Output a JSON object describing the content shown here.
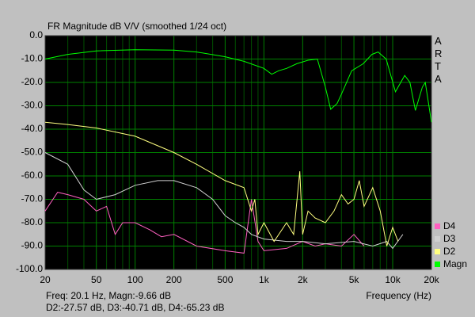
{
  "chart_data": {
    "type": "line",
    "title": "FR Magnitude dB V/V (smoothed 1/24 oct)",
    "side_label": "ARTA",
    "x_label": "Frequency (Hz)",
    "status": [
      "Freq: 20.1 Hz, Magn:-9.66 dB",
      "D2:-27.57 dB, D3:-40.71 dB, D4:-65.23 dB"
    ],
    "log_x": true,
    "grid": true,
    "legend": "lower right",
    "xlim": [
      20,
      20000
    ],
    "ylim": [
      -100,
      0
    ],
    "xticks": [
      20,
      50,
      100,
      200,
      500,
      {
        "value": 1000,
        "label": "1k"
      },
      {
        "value": 2000,
        "label": "2k"
      },
      {
        "value": 5000,
        "label": "5k"
      },
      {
        "value": 10000,
        "label": "10k"
      },
      {
        "value": 20000,
        "label": "20k"
      }
    ],
    "xminorticks": [
      30,
      40,
      60,
      70,
      80,
      90,
      300,
      400,
      600,
      700,
      800,
      900,
      3000,
      4000,
      6000,
      7000,
      8000,
      9000
    ],
    "yticks": [
      {
        "value": 0,
        "label": "0.0"
      },
      {
        "value": -10,
        "label": "-10.0"
      },
      {
        "value": -20,
        "label": "-20.0"
      },
      {
        "value": -30,
        "label": "-30.0"
      },
      {
        "value": -40,
        "label": "-40.0"
      },
      {
        "value": -50,
        "label": "-50.0"
      },
      {
        "value": -60,
        "label": "-60.0"
      },
      {
        "value": -70,
        "label": "-70.0"
      },
      {
        "value": -80,
        "label": "-80.0"
      },
      {
        "value": -90,
        "label": "-90.0"
      },
      {
        "value": -100,
        "label": "-100.0"
      }
    ],
    "series": [
      {
        "name": "Magn",
        "color": "#00ff00",
        "x": [
          20,
          30,
          50,
          100,
          200,
          300,
          500,
          700,
          1000,
          1150,
          1300,
          1500,
          1800,
          2200,
          2600,
          3000,
          3300,
          3700,
          4000,
          4800,
          5900,
          6900,
          7700,
          8900,
          10500,
          12400,
          13600,
          15000,
          17000,
          17900,
          20000
        ],
        "values": [
          -10,
          -8,
          -6.5,
          -6,
          -6.2,
          -7,
          -9,
          -11,
          -14,
          -16.5,
          -15,
          -14,
          -12,
          -10.5,
          -10,
          -22,
          -31.5,
          -29,
          -25,
          -15,
          -12,
          -8,
          -7,
          -10,
          -24,
          -17,
          -20,
          -32,
          -22,
          -20,
          -37
        ]
      },
      {
        "name": "D2",
        "color": "#ffff80",
        "x": [
          20,
          30,
          50,
          100,
          200,
          300,
          500,
          700,
          800,
          850,
          900,
          1000,
          1200,
          1500,
          1700,
          1900,
          2000,
          2200,
          2500,
          3000,
          3500,
          4000,
          4500,
          5000,
          5500,
          6000,
          7000,
          8000,
          9000,
          10000,
          11000
        ],
        "values": [
          -37,
          -38,
          -39.5,
          -43,
          -50,
          -55,
          -62,
          -65,
          -75,
          -70,
          -85,
          -80,
          -88,
          -80,
          -85,
          -58,
          -85,
          -75,
          -78,
          -80,
          -75,
          -68,
          -72,
          -70,
          -62,
          -73,
          -65,
          -75,
          -90,
          -82,
          -88
        ]
      },
      {
        "name": "D3",
        "color": "#d0d0d0",
        "x": [
          20,
          30,
          40,
          50,
          70,
          100,
          150,
          200,
          300,
          400,
          500,
          600,
          700,
          800,
          1000,
          1500,
          2000,
          3000,
          5000,
          7000,
          9000,
          10000,
          12000
        ],
        "values": [
          -50,
          -55,
          -66,
          -70,
          -68,
          -64,
          -62,
          -62,
          -65,
          -70,
          -77,
          -80,
          -82,
          -85,
          -87,
          -88,
          -88,
          -89,
          -88,
          -90,
          -88,
          -91,
          -85
        ]
      },
      {
        "name": "D4",
        "color": "#ff60c0",
        "x": [
          20,
          25,
          30,
          40,
          50,
          60,
          70,
          80,
          100,
          130,
          160,
          200,
          300,
          500,
          700,
          800,
          900,
          1000,
          1500,
          2000,
          2500,
          3000,
          4000,
          5000,
          6000
        ],
        "values": [
          -75,
          -67,
          -68,
          -70,
          -75,
          -73,
          -85,
          -80,
          -80,
          -83,
          -86,
          -85,
          -90,
          -92,
          -93,
          -70,
          -88,
          -92,
          -91,
          -88,
          -90,
          -89,
          -90,
          -85,
          -90
        ]
      }
    ]
  }
}
